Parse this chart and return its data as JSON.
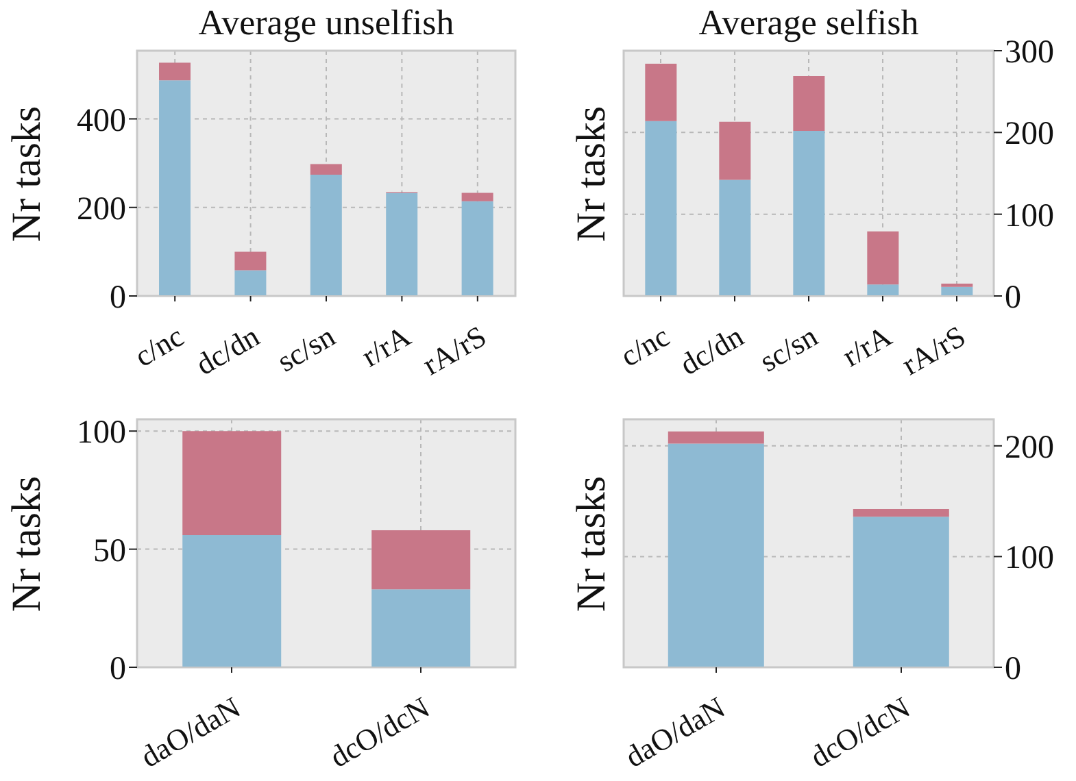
{
  "chart_data": [
    {
      "type": "bar",
      "title": "Average unselfish",
      "ylabel": "Nr tasks",
      "stacked": true,
      "grid": true,
      "categories": [
        "c/nc",
        "dc/dn",
        "sc/sn",
        "r/rA",
        "rA/rS"
      ],
      "series": [
        {
          "color": "#8ebad3",
          "values": [
            487,
            58,
            274,
            233,
            214
          ]
        },
        {
          "color": "#c87788",
          "values": [
            40,
            42,
            24,
            2,
            19
          ]
        }
      ],
      "ylim": [
        0,
        554
      ],
      "yticks": [
        0,
        200,
        400
      ]
    },
    {
      "type": "bar",
      "title": "Average selfish",
      "ylabel": "Nr tasks",
      "stacked": true,
      "grid": true,
      "categories": [
        "c/nc",
        "dc/dn",
        "sc/sn",
        "r/rA",
        "rA/rS"
      ],
      "series": [
        {
          "color": "#8ebad3",
          "values": [
            214,
            142,
            202,
            14,
            11
          ]
        },
        {
          "color": "#c87788",
          "values": [
            70,
            71,
            67,
            65,
            4
          ]
        }
      ],
      "ylim": [
        0,
        300
      ],
      "yticks": [
        0,
        100,
        200,
        300
      ]
    },
    {
      "type": "bar",
      "ylabel": "Nr tasks",
      "stacked": true,
      "grid": true,
      "categories": [
        "daO/daN",
        "dcO/dcN"
      ],
      "series": [
        {
          "color": "#8ebad3",
          "values": [
            56,
            33
          ]
        },
        {
          "color": "#c87788",
          "values": [
            44,
            25
          ]
        }
      ],
      "ylim": [
        0,
        105
      ],
      "yticks": [
        0,
        50,
        100
      ]
    },
    {
      "type": "bar",
      "ylabel": "Nr tasks",
      "stacked": true,
      "grid": true,
      "categories": [
        "daO/daN",
        "dcO/dcN"
      ],
      "series": [
        {
          "color": "#8ebad3",
          "values": [
            202,
            136
          ]
        },
        {
          "color": "#c87788",
          "values": [
            11,
            7
          ]
        }
      ],
      "ylim": [
        0,
        224
      ],
      "yticks": [
        0,
        100,
        200
      ]
    }
  ]
}
